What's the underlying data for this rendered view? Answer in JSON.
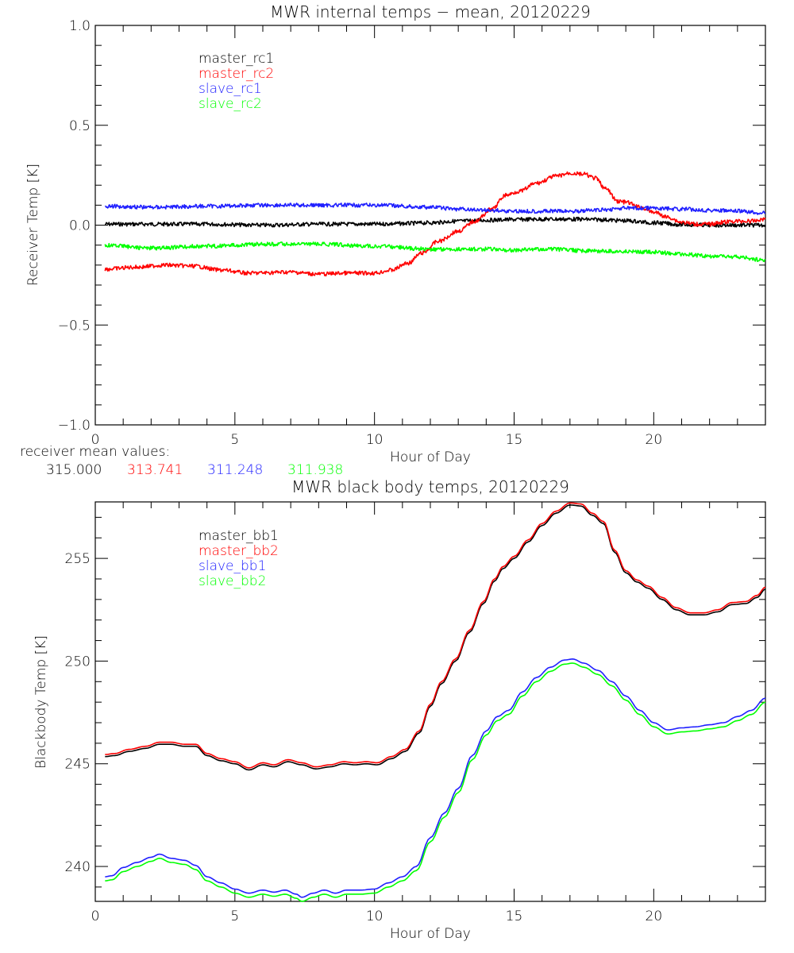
{
  "chart_data": [
    {
      "type": "line",
      "title": "MWR internal temps − mean, 20120229",
      "xlabel": "Hour of Day",
      "ylabel": "Receiver Temp [K]",
      "xlim": [
        0,
        24
      ],
      "ylim": [
        -1.0,
        1.0
      ],
      "xticks": [
        0,
        5,
        10,
        15,
        20
      ],
      "xtick_labels": [
        "0",
        "5",
        "10",
        "15",
        "20"
      ],
      "x_minor_step": 1,
      "yticks": [
        -1.0,
        -0.5,
        0.0,
        0.5,
        1.0
      ],
      "ytick_labels": [
        "−1.0",
        "−0.5",
        "0.0",
        "0.5",
        "1.0"
      ],
      "y_minor_step": 0.1,
      "grid": false,
      "legend_position": "top-left",
      "series": [
        {
          "name": "master_rc1",
          "color": "#000000",
          "x": [
            0.35,
            2,
            4,
            6,
            8,
            10,
            11,
            12,
            13,
            14,
            15,
            16,
            17,
            18,
            19,
            20,
            21,
            22,
            23,
            24
          ],
          "y": [
            0.005,
            0.005,
            0.005,
            0.0,
            0.005,
            0.005,
            0.008,
            0.012,
            0.02,
            0.025,
            0.028,
            0.03,
            0.03,
            0.028,
            0.022,
            0.012,
            0.003,
            0.0,
            0.0,
            0.0
          ]
        },
        {
          "name": "master_rc2",
          "color": "#ff0000",
          "x": [
            0.35,
            1.5,
            2.5,
            3.5,
            4.5,
            5.5,
            7,
            8,
            9,
            10,
            10.6,
            11.2,
            11.7,
            12.3,
            13,
            13.6,
            14.2,
            14.7,
            15.2,
            15.8,
            16.5,
            17.0,
            17.5,
            17.9,
            18.3,
            18.7,
            19.0,
            19.5,
            20.0,
            20.5,
            21.0,
            21.5,
            22.0,
            22.5,
            23.0,
            23.5,
            24.0
          ],
          "y": [
            -0.22,
            -0.21,
            -0.2,
            -0.205,
            -0.225,
            -0.24,
            -0.235,
            -0.245,
            -0.24,
            -0.24,
            -0.225,
            -0.19,
            -0.14,
            -0.08,
            -0.03,
            0.02,
            0.08,
            0.15,
            0.17,
            0.21,
            0.245,
            0.26,
            0.255,
            0.235,
            0.18,
            0.12,
            0.115,
            0.09,
            0.065,
            0.04,
            0.015,
            0.005,
            0.005,
            0.015,
            0.02,
            0.02,
            0.03
          ]
        },
        {
          "name": "slave_rc1",
          "color": "#2020ff",
          "x": [
            0.35,
            2,
            4,
            6,
            8,
            10,
            12,
            13,
            14,
            15,
            16,
            17,
            18,
            19,
            20,
            21,
            22,
            23,
            24
          ],
          "y": [
            0.095,
            0.09,
            0.095,
            0.1,
            0.1,
            0.1,
            0.09,
            0.08,
            0.075,
            0.07,
            0.07,
            0.07,
            0.075,
            0.085,
            0.085,
            0.08,
            0.075,
            0.07,
            0.06
          ]
        },
        {
          "name": "slave_rc2",
          "color": "#00ff00",
          "x": [
            0.35,
            2,
            4,
            6,
            8,
            10,
            12,
            14,
            15,
            16,
            18,
            20,
            21,
            22,
            23,
            24
          ],
          "y": [
            -0.1,
            -0.115,
            -0.105,
            -0.095,
            -0.095,
            -0.105,
            -0.12,
            -0.12,
            -0.125,
            -0.12,
            -0.13,
            -0.135,
            -0.145,
            -0.155,
            -0.16,
            -0.175
          ]
        }
      ],
      "annotation": {
        "label": "receiver mean values:",
        "values": [
          {
            "text": "315.000",
            "color": "#000000"
          },
          {
            "text": "313.741",
            "color": "#ff0000"
          },
          {
            "text": "311.248",
            "color": "#2020ff"
          },
          {
            "text": "311.938",
            "color": "#00ff00"
          }
        ]
      }
    },
    {
      "type": "line",
      "title": "MWR black body temps, 20120229",
      "xlabel": "Hour of Day",
      "ylabel": "Blackbody Temp [K]",
      "xlim": [
        0,
        24
      ],
      "ylim": [
        238.3,
        257.75
      ],
      "xticks": [
        0,
        5,
        10,
        15,
        20
      ],
      "xtick_labels": [
        "0",
        "5",
        "10",
        "15",
        "20"
      ],
      "x_minor_step": 1,
      "yticks": [
        240,
        245,
        250,
        255
      ],
      "ytick_labels": [
        "240",
        "245",
        "250",
        "255"
      ],
      "y_minor_step": 1,
      "grid": false,
      "legend_position": "top-left",
      "series": [
        {
          "name": "master_bb1",
          "color": "#000000",
          "x": [
            0.35,
            0.7,
            1.2,
            1.8,
            2.3,
            2.7,
            3.2,
            3.6,
            4.0,
            4.5,
            5.0,
            5.5,
            6.0,
            6.4,
            6.9,
            7.4,
            7.9,
            8.4,
            8.9,
            9.3,
            9.7,
            10.1,
            10.6,
            11.1,
            11.6,
            12.0,
            12.4,
            12.9,
            13.4,
            13.9,
            14.3,
            14.6,
            15.0,
            15.5,
            16.0,
            16.5,
            17.0,
            17.4,
            17.8,
            18.2,
            18.6,
            19.0,
            19.4,
            19.8,
            20.3,
            20.8,
            21.3,
            21.8,
            22.3,
            22.8,
            23.3,
            23.7,
            24.0
          ],
          "y": [
            245.35,
            245.4,
            245.6,
            245.75,
            245.95,
            245.95,
            245.85,
            245.85,
            245.4,
            245.15,
            245.0,
            244.7,
            244.95,
            244.85,
            245.1,
            244.95,
            244.75,
            244.85,
            245.0,
            244.95,
            245.0,
            244.95,
            245.25,
            245.6,
            246.5,
            247.8,
            248.9,
            250.0,
            251.4,
            252.8,
            253.9,
            254.5,
            255.0,
            255.8,
            256.6,
            257.2,
            257.6,
            257.55,
            257.1,
            256.7,
            255.3,
            254.3,
            253.85,
            253.55,
            253.0,
            252.5,
            252.25,
            252.25,
            252.4,
            252.75,
            252.8,
            253.1,
            253.5
          ]
        },
        {
          "name": "master_bb2",
          "color": "#ff0000",
          "x": [
            0.35,
            0.7,
            1.2,
            1.8,
            2.3,
            2.7,
            3.2,
            3.6,
            4.0,
            4.5,
            5.0,
            5.5,
            6.0,
            6.4,
            6.9,
            7.4,
            7.9,
            8.4,
            8.9,
            9.3,
            9.7,
            10.1,
            10.6,
            11.1,
            11.6,
            12.0,
            12.4,
            12.9,
            13.4,
            13.9,
            14.3,
            14.6,
            15.0,
            15.5,
            16.0,
            16.5,
            17.0,
            17.4,
            17.8,
            18.2,
            18.6,
            19.0,
            19.4,
            19.8,
            20.3,
            20.8,
            21.3,
            21.8,
            22.3,
            22.8,
            23.3,
            23.7,
            24.0
          ],
          "y": [
            245.45,
            245.5,
            245.7,
            245.85,
            246.05,
            246.05,
            245.95,
            245.95,
            245.5,
            245.25,
            245.1,
            244.8,
            245.05,
            244.95,
            245.2,
            245.05,
            244.85,
            244.95,
            245.1,
            245.05,
            245.1,
            245.05,
            245.35,
            245.7,
            246.6,
            247.9,
            249.0,
            250.1,
            251.5,
            252.9,
            254.0,
            254.6,
            255.1,
            255.9,
            256.7,
            257.3,
            257.7,
            257.65,
            257.2,
            256.8,
            255.4,
            254.4,
            253.95,
            253.65,
            253.1,
            252.6,
            252.35,
            252.35,
            252.5,
            252.85,
            252.9,
            253.2,
            253.6
          ]
        },
        {
          "name": "slave_bb1",
          "color": "#2020ff",
          "x": [
            0.35,
            0.6,
            1.0,
            1.5,
            2.0,
            2.3,
            2.7,
            3.2,
            3.6,
            4.0,
            4.5,
            5.0,
            5.5,
            6.0,
            6.4,
            6.8,
            7.2,
            7.4,
            7.8,
            8.2,
            8.6,
            9.0,
            9.5,
            10.0,
            10.5,
            11.0,
            11.5,
            12.0,
            12.5,
            13.0,
            13.5,
            14.0,
            14.4,
            14.8,
            15.3,
            15.8,
            16.3,
            16.8,
            17.1,
            17.5,
            18.0,
            18.5,
            19.0,
            19.5,
            20.0,
            20.5,
            21.0,
            21.5,
            22.0,
            22.5,
            23.0,
            23.5,
            24.0
          ],
          "y": [
            239.5,
            239.55,
            239.95,
            240.2,
            240.45,
            240.6,
            240.4,
            240.3,
            240.05,
            239.5,
            239.2,
            238.9,
            238.7,
            238.85,
            238.75,
            238.85,
            238.65,
            238.5,
            238.7,
            238.85,
            238.7,
            238.85,
            238.85,
            238.9,
            239.2,
            239.5,
            240.0,
            241.4,
            242.6,
            243.8,
            245.4,
            246.6,
            247.3,
            247.6,
            248.5,
            249.2,
            249.7,
            250.05,
            250.1,
            249.9,
            249.55,
            249.0,
            248.3,
            247.6,
            247.0,
            246.65,
            246.75,
            246.8,
            246.9,
            247.0,
            247.3,
            247.6,
            248.2
          ]
        },
        {
          "name": "slave_bb2",
          "color": "#00ff00",
          "x": [
            0.35,
            0.6,
            1.0,
            1.5,
            2.0,
            2.3,
            2.7,
            3.2,
            3.6,
            4.0,
            4.5,
            5.0,
            5.5,
            6.0,
            6.4,
            6.8,
            7.2,
            7.4,
            7.8,
            8.2,
            8.6,
            9.0,
            9.5,
            10.0,
            10.5,
            11.0,
            11.5,
            12.0,
            12.5,
            13.0,
            13.5,
            14.0,
            14.4,
            14.8,
            15.3,
            15.8,
            16.3,
            16.8,
            17.1,
            17.5,
            18.0,
            18.5,
            19.0,
            19.5,
            20.0,
            20.5,
            21.0,
            21.5,
            22.0,
            22.5,
            23.0,
            23.5,
            24.0
          ],
          "y": [
            239.3,
            239.35,
            239.75,
            240.0,
            240.25,
            240.4,
            240.2,
            240.1,
            239.85,
            239.3,
            239.0,
            238.7,
            238.5,
            238.65,
            238.55,
            238.65,
            238.45,
            238.3,
            238.5,
            238.65,
            238.5,
            238.65,
            238.65,
            238.7,
            239.0,
            239.3,
            239.8,
            241.2,
            242.4,
            243.6,
            245.2,
            246.4,
            247.1,
            247.4,
            248.3,
            249.0,
            249.5,
            249.85,
            249.9,
            249.7,
            249.35,
            248.8,
            248.1,
            247.4,
            246.8,
            246.45,
            246.55,
            246.6,
            246.7,
            246.8,
            247.1,
            247.4,
            248.0
          ]
        }
      ]
    }
  ]
}
